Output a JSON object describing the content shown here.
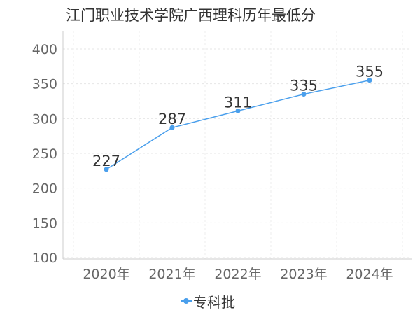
{
  "chart_data": {
    "type": "line",
    "title": "江门职业技术学院广西理科历年最低分",
    "xlabel": "",
    "ylabel": "",
    "categories": [
      "2020年",
      "2021年",
      "2022年",
      "2023年",
      "2024年"
    ],
    "series": [
      {
        "name": "专科批",
        "values": [
          227,
          287,
          311,
          335,
          355
        ],
        "color": "#4a9fec"
      }
    ],
    "ylim": [
      100,
      400
    ],
    "yticks": [
      100,
      150,
      200,
      250,
      300,
      350,
      400
    ],
    "grid": true,
    "legend": "bottom-center",
    "data_labels": true
  }
}
